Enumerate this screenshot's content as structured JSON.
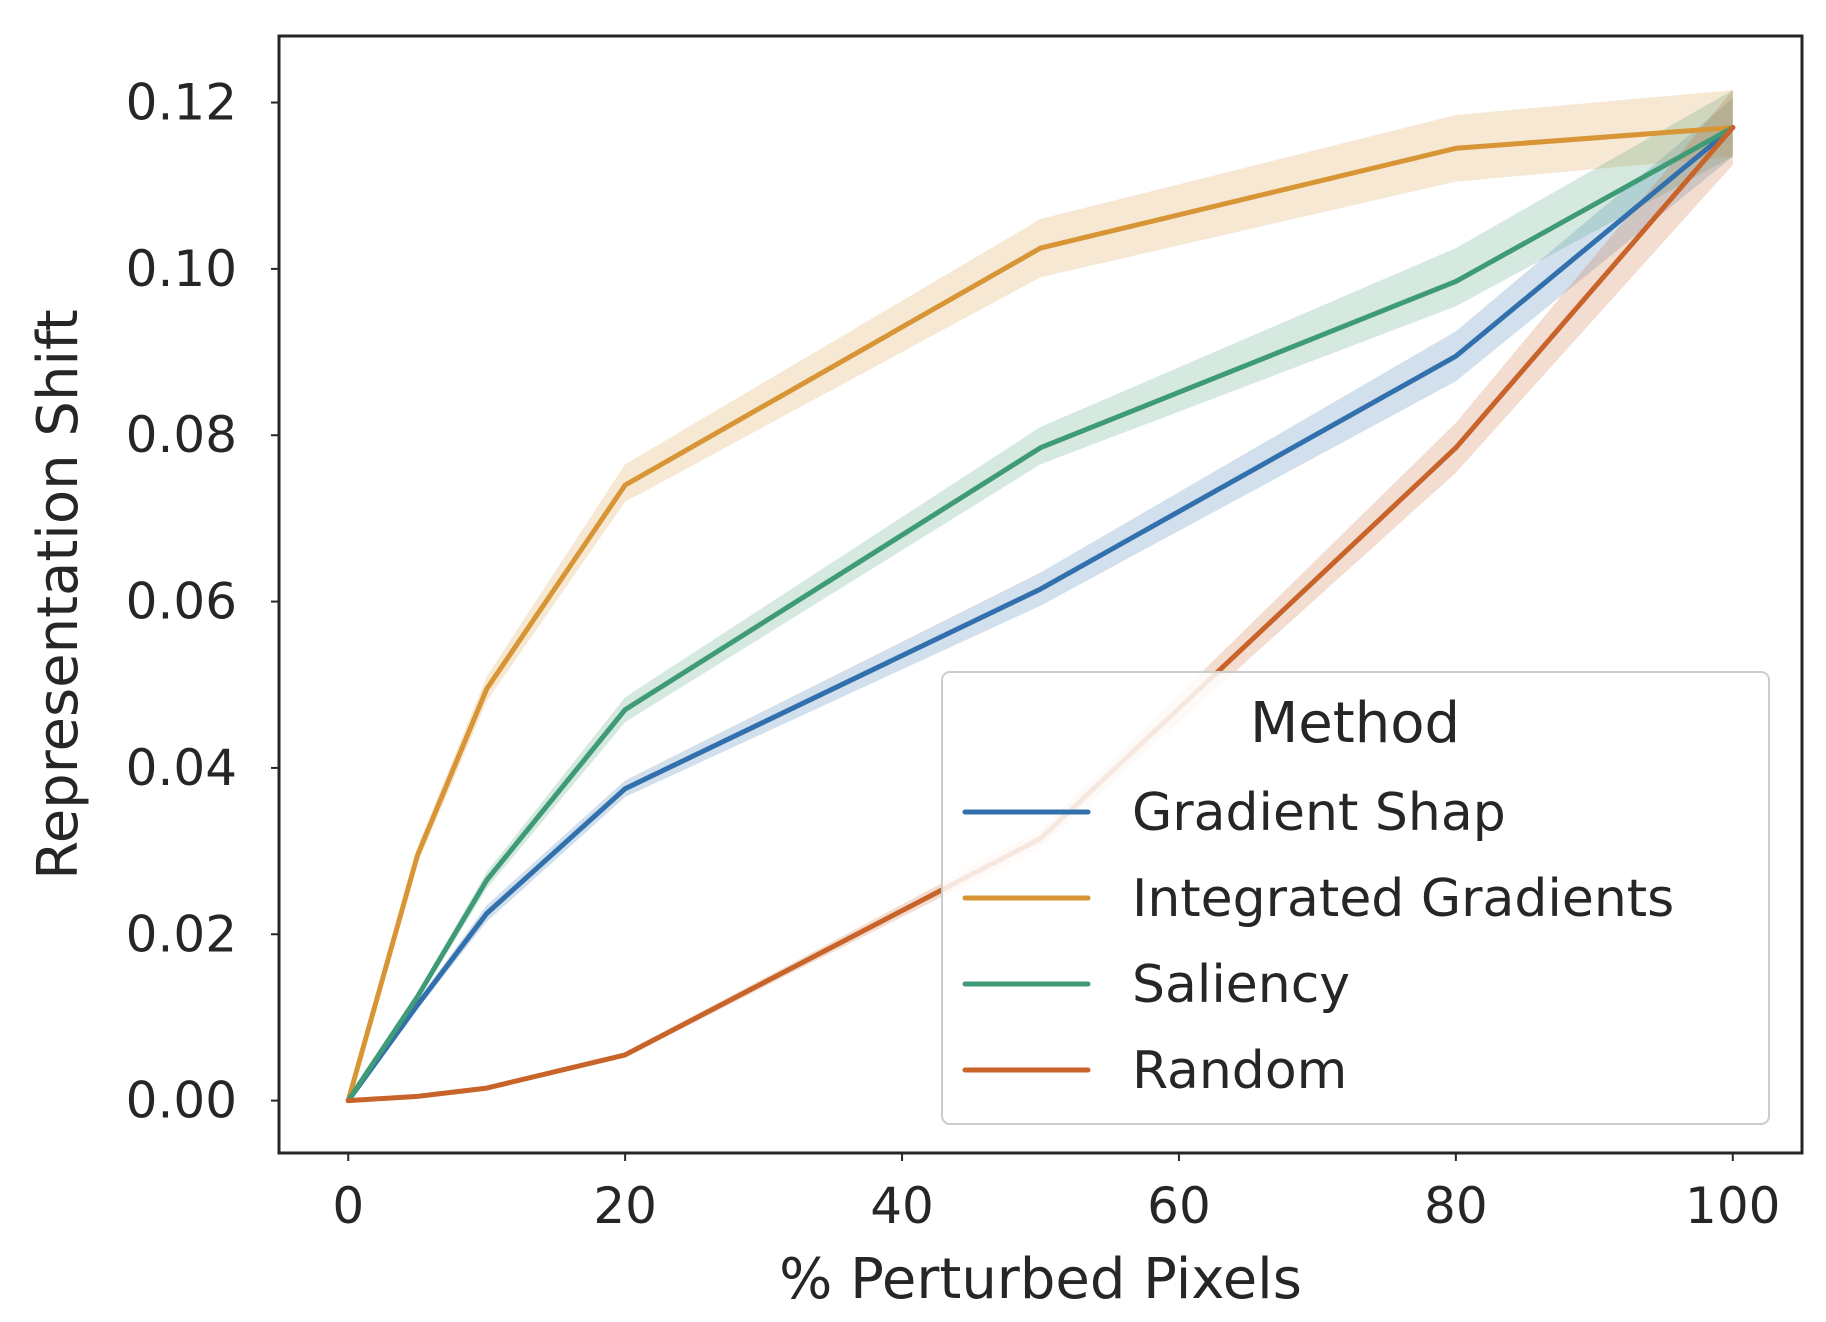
{
  "chart_data": {
    "type": "line",
    "title": "",
    "xlabel": "% Perturbed Pixels",
    "ylabel": "Representation Shift",
    "xlim": [
      -5,
      105
    ],
    "ylim": [
      -0.0063,
      0.128
    ],
    "xticks": [
      0,
      20,
      40,
      60,
      80,
      100
    ],
    "xtick_labels": [
      "0",
      "20",
      "40",
      "60",
      "80",
      "100"
    ],
    "yticks": [
      0.0,
      0.02,
      0.04,
      0.06,
      0.08,
      0.1,
      0.12
    ],
    "ytick_labels": [
      "0.00",
      "0.02",
      "0.04",
      "0.06",
      "0.08",
      "0.10",
      "0.12"
    ],
    "grid": false,
    "legend": {
      "title": "Method",
      "placement": "bottom-right"
    },
    "x": [
      0,
      5,
      10,
      20,
      50,
      80,
      100
    ],
    "series": [
      {
        "name": "Gradient Shap",
        "color": "#3170ad",
        "values": [
          0.0,
          0.0115,
          0.0225,
          0.0375,
          0.0615,
          0.0895,
          0.117
        ],
        "lower": [
          0.0,
          0.011,
          0.0215,
          0.0365,
          0.0595,
          0.0865,
          0.1135
        ],
        "upper": [
          0.0,
          0.012,
          0.0235,
          0.0385,
          0.0635,
          0.0925,
          0.1205
        ]
      },
      {
        "name": "Integrated Gradients",
        "color": "#d89535",
        "values": [
          0.0,
          0.0295,
          0.0495,
          0.074,
          0.1025,
          0.1145,
          0.117
        ],
        "lower": [
          0.0,
          0.0285,
          0.048,
          0.072,
          0.099,
          0.1105,
          0.1135
        ],
        "upper": [
          0.0,
          0.0305,
          0.051,
          0.0765,
          0.106,
          0.1185,
          0.1215
        ]
      },
      {
        "name": "Saliency",
        "color": "#3f9a76",
        "values": [
          0.0,
          0.0125,
          0.0265,
          0.047,
          0.0785,
          0.0985,
          0.117
        ],
        "lower": [
          0.0,
          0.012,
          0.0255,
          0.0455,
          0.0765,
          0.0955,
          0.1135
        ],
        "upper": [
          0.0,
          0.013,
          0.0275,
          0.0485,
          0.081,
          0.1025,
          0.1215
        ]
      },
      {
        "name": "Random",
        "color": "#c8632a",
        "values": [
          0.0,
          0.0005,
          0.0015,
          0.0055,
          0.0315,
          0.0785,
          0.117
        ],
        "lower": [
          0.0,
          0.0004,
          0.0013,
          0.0052,
          0.0305,
          0.0755,
          0.1125
        ],
        "upper": [
          0.0,
          0.0006,
          0.0017,
          0.0058,
          0.0325,
          0.0815,
          0.1215
        ]
      }
    ]
  }
}
